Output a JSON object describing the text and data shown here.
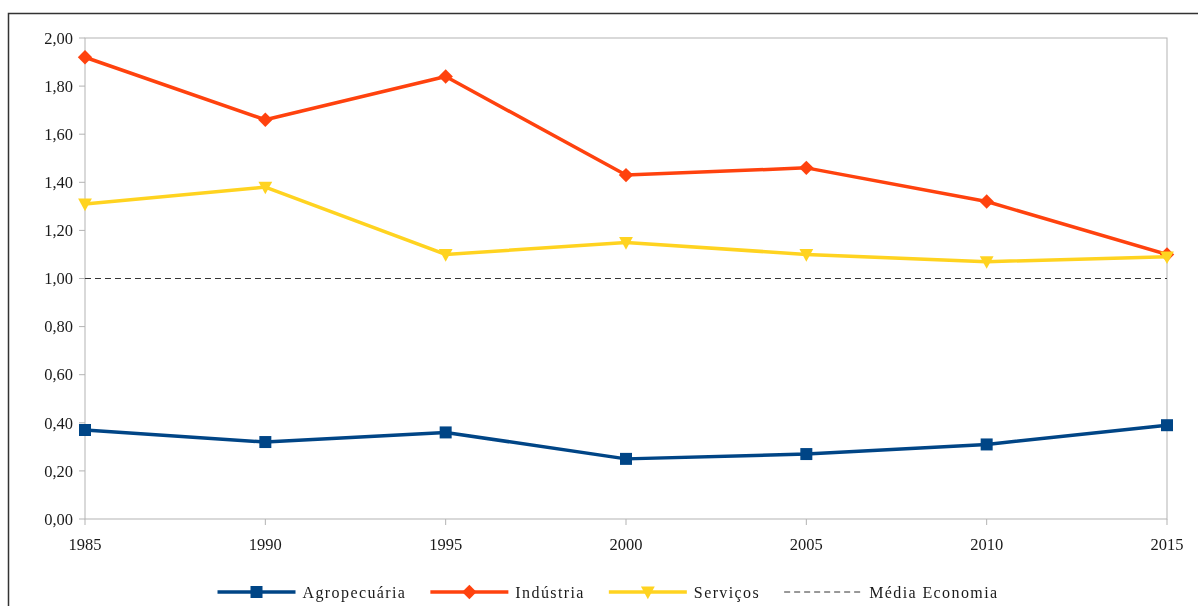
{
  "chart_data": {
    "type": "line",
    "x": [
      1985,
      1990,
      1995,
      2000,
      2005,
      2010,
      2015
    ],
    "xlim": [
      1985,
      2015
    ],
    "xticks": [
      1985,
      1990,
      1995,
      2000,
      2005,
      2010,
      2015
    ],
    "ylim": [
      0,
      2
    ],
    "yticks": [
      {
        "value": 0,
        "label": "0,00"
      },
      {
        "value": 0.2,
        "label": "0,20"
      },
      {
        "value": 0.4,
        "label": "0,40"
      },
      {
        "value": 0.6,
        "label": "0,60"
      },
      {
        "value": 0.8,
        "label": "0,80"
      },
      {
        "value": 1,
        "label": "1,00"
      },
      {
        "value": 1.2,
        "label": "1,20"
      },
      {
        "value": 1.4,
        "label": "1,40"
      },
      {
        "value": 1.6,
        "label": "1,60"
      },
      {
        "value": 1.8,
        "label": "1,80"
      },
      {
        "value": 2,
        "label": "2,00"
      }
    ],
    "series": [
      {
        "name": "Agropecuária",
        "color": "#004586",
        "marker": "square",
        "values": [
          0.37,
          0.32,
          0.36,
          0.25,
          0.27,
          0.31,
          0.39
        ]
      },
      {
        "name": "Indústria",
        "color": "#ff420e",
        "marker": "diamond",
        "values": [
          1.92,
          1.66,
          1.84,
          1.43,
          1.46,
          1.32,
          1.1
        ]
      },
      {
        "name": "Serviços",
        "color": "#ffd320",
        "marker": "triangle",
        "values": [
          1.31,
          1.38,
          1.1,
          1.15,
          1.1,
          1.07,
          1.09
        ]
      }
    ],
    "ref_lines": [
      {
        "axis": "y",
        "value": 1,
        "label": "Média Economia",
        "color": "#333333",
        "line_style": "dashed"
      }
    ],
    "legend": "bottom",
    "grid": false
  }
}
